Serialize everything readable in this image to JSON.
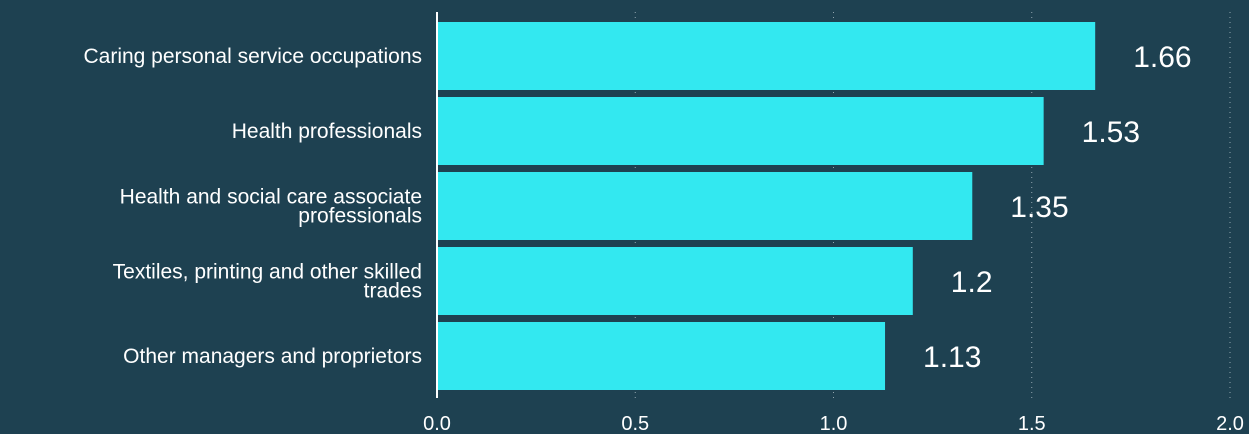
{
  "colors": {
    "background": "#1e4151",
    "bar": "#33e8f0",
    "axis": "#ffffff",
    "grid": "#a7b8c0"
  },
  "chart_data": {
    "type": "bar",
    "orientation": "horizontal",
    "categories": [
      [
        "Caring personal service occupations"
      ],
      [
        "Health professionals"
      ],
      [
        "Health and social care associate",
        "professionals"
      ],
      [
        "Textiles, printing and other skilled",
        "trades"
      ],
      [
        "Other managers and proprietors"
      ]
    ],
    "values": [
      1.66,
      1.53,
      1.35,
      1.2,
      1.13
    ],
    "value_labels": [
      "1.66",
      "1.53",
      "1.35",
      "1.2",
      "1.13"
    ],
    "xlim": [
      0,
      2
    ],
    "xticks": [
      0,
      0.5,
      1,
      1.5,
      2
    ],
    "xtick_labels": [
      "0.0",
      "0.5",
      "1.0",
      "1.5",
      "2.0"
    ],
    "grid": "vertical dotted",
    "title": "",
    "xlabel": "",
    "ylabel": ""
  }
}
